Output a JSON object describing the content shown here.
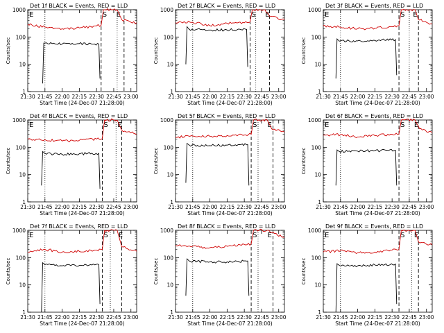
{
  "figure": {
    "xlabel": "Start Time (24-Dec-07 21:28:00)",
    "ylabel": "Counts/sec"
  },
  "chart_data": [
    {
      "type": "line",
      "title": "Det 1f BLACK = Events, RED = LLD",
      "xlabel": "Start Time (24-Dec-07 21:28:00)",
      "ylabel": "Counts/sec",
      "yscale": "log",
      "ylim": [
        1,
        1000
      ],
      "xlim": [
        "21:30",
        "23:05"
      ],
      "x_ticks": [
        "21:30",
        "21:45",
        "22:00",
        "22:15",
        "22:30",
        "22:45",
        "23:00"
      ],
      "y_ticks": [
        "1",
        "10",
        "100",
        "1000"
      ],
      "markers": [
        {
          "label": "E",
          "time": "21:30"
        },
        {
          "label": "S",
          "time": "22:34"
        },
        {
          "label": "E",
          "time": "22:46"
        }
      ],
      "dotted_lines": [
        "21:45",
        "22:48"
      ],
      "dashed_lines": [
        "22:34",
        "22:54"
      ],
      "series": [
        {
          "color": "#d00000",
          "x": [
            "21:30",
            "21:45",
            "22:00",
            "22:15",
            "22:30",
            "22:34",
            "22:36",
            "22:48",
            "22:52",
            "23:05"
          ],
          "y": [
            290,
            230,
            200,
            215,
            255,
            270,
            1000,
            1000,
            430,
            330
          ]
        },
        {
          "color": "#000000",
          "x": [
            "21:43",
            "21:44",
            "21:45",
            "22:00",
            "22:15",
            "22:32",
            "22:33"
          ],
          "y": [
            2,
            60,
            60,
            55,
            57,
            55,
            3
          ]
        }
      ]
    },
    {
      "type": "line",
      "title": "Det 2f BLACK = Events, RED = LLD",
      "xlabel": "Start Time (24-Dec-07 21:28:00)",
      "ylabel": "Counts/sec",
      "yscale": "log",
      "ylim": [
        1,
        1000
      ],
      "xlim": [
        "21:30",
        "23:05"
      ],
      "x_ticks": [
        "21:30",
        "21:45",
        "22:00",
        "22:15",
        "22:30",
        "22:45",
        "23:00"
      ],
      "y_ticks": [
        "1",
        "10",
        "100",
        "1000"
      ],
      "markers": [
        {
          "label": "S",
          "time": "22:35"
        },
        {
          "label": "E",
          "time": "22:47"
        }
      ],
      "dotted_lines": [
        "21:45",
        "22:40"
      ],
      "dashed_lines": [
        "22:35",
        "22:52"
      ],
      "series": [
        {
          "color": "#d00000",
          "x": [
            "21:30",
            "21:45",
            "22:00",
            "22:15",
            "22:30",
            "22:35",
            "22:37",
            "22:48",
            "22:52",
            "23:05"
          ],
          "y": [
            330,
            350,
            260,
            320,
            330,
            350,
            1000,
            1000,
            560,
            430
          ]
        },
        {
          "color": "#000000",
          "x": [
            "21:39",
            "21:40",
            "21:42",
            "22:00",
            "22:15",
            "22:32",
            "22:33"
          ],
          "y": [
            10,
            240,
            190,
            180,
            180,
            190,
            8
          ]
        }
      ]
    },
    {
      "type": "line",
      "title": "Det 3f BLACK = Events, RED = LLD",
      "xlabel": "Start Time (24-Dec-07 21:28:00)",
      "ylabel": "Counts/sec",
      "yscale": "log",
      "ylim": [
        1,
        1000
      ],
      "xlim": [
        "21:30",
        "23:05"
      ],
      "x_ticks": [
        "21:30",
        "21:45",
        "22:00",
        "22:15",
        "22:30",
        "22:45",
        "23:00"
      ],
      "y_ticks": [
        "1",
        "10",
        "100",
        "1000"
      ],
      "markers": [
        {
          "label": "E",
          "time": "21:30"
        },
        {
          "label": "S",
          "time": "22:36"
        },
        {
          "label": "E",
          "time": "22:47"
        }
      ],
      "dotted_lines": [
        "21:45",
        "22:45"
      ],
      "dashed_lines": [
        "22:36",
        "22:53"
      ],
      "series": [
        {
          "color": "#d00000",
          "x": [
            "21:30",
            "21:45",
            "22:00",
            "22:15",
            "22:30",
            "22:36",
            "22:38",
            "22:50",
            "22:53",
            "23:05"
          ],
          "y": [
            260,
            230,
            200,
            210,
            240,
            260,
            1000,
            1000,
            430,
            300
          ]
        },
        {
          "color": "#000000",
          "x": [
            "21:41",
            "21:42",
            "21:44",
            "22:00",
            "22:15",
            "22:33",
            "22:34"
          ],
          "y": [
            3,
            85,
            70,
            72,
            75,
            80,
            4
          ]
        }
      ]
    },
    {
      "type": "line",
      "title": "Det 4f BLACK = Events, RED = LLD",
      "xlabel": "Start Time (24-Dec-07 21:28:00)",
      "ylabel": "Counts/sec",
      "yscale": "log",
      "ylim": [
        1,
        1000
      ],
      "xlim": [
        "21:30",
        "23:05"
      ],
      "x_ticks": [
        "21:30",
        "21:45",
        "22:00",
        "22:15",
        "22:30",
        "22:45",
        "23:00"
      ],
      "y_ticks": [
        "1",
        "10",
        "100",
        "1000"
      ],
      "markers": [
        {
          "label": "E",
          "time": "21:30"
        },
        {
          "label": "S",
          "time": "22:35"
        },
        {
          "label": "E",
          "time": "22:47"
        }
      ],
      "dotted_lines": [
        "21:45",
        "22:47"
      ],
      "dashed_lines": [
        "22:35",
        "22:52"
      ],
      "series": [
        {
          "color": "#d00000",
          "x": [
            "21:30",
            "21:45",
            "22:00",
            "22:15",
            "22:30",
            "22:35",
            "22:37",
            "22:48",
            "22:52",
            "23:05"
          ],
          "y": [
            200,
            190,
            170,
            180,
            200,
            210,
            1000,
            1000,
            420,
            300
          ]
        },
        {
          "color": "#000000",
          "x": [
            "21:42",
            "21:43",
            "21:45",
            "22:00",
            "22:15",
            "22:32",
            "22:33"
          ],
          "y": [
            4,
            70,
            60,
            55,
            58,
            60,
            3
          ]
        }
      ]
    },
    {
      "type": "line",
      "title": "Det 5f BLACK = Events, RED = LLD",
      "xlabel": "Start Time (24-Dec-07 21:28:00)",
      "ylabel": "Counts/sec",
      "yscale": "log",
      "ylim": [
        1,
        1000
      ],
      "xlim": [
        "21:30",
        "23:05"
      ],
      "x_ticks": [
        "21:30",
        "21:45",
        "22:00",
        "22:15",
        "22:30",
        "22:45",
        "23:00"
      ],
      "y_ticks": [
        "1",
        "10",
        "100",
        "1000"
      ],
      "markers": [
        {
          "label": "S",
          "time": "22:36"
        },
        {
          "label": "E",
          "time": "22:49"
        }
      ],
      "dotted_lines": [
        "21:45",
        "22:42"
      ],
      "dashed_lines": [
        "22:36",
        "22:55"
      ],
      "series": [
        {
          "color": "#d00000",
          "x": [
            "21:30",
            "21:45",
            "22:00",
            "22:15",
            "22:30",
            "22:36",
            "22:38",
            "22:50",
            "22:54",
            "23:05"
          ],
          "y": [
            230,
            260,
            250,
            270,
            280,
            300,
            1000,
            1000,
            470,
            360
          ]
        },
        {
          "color": "#000000",
          "x": [
            "21:39",
            "21:40",
            "21:42",
            "22:00",
            "22:15",
            "22:33",
            "22:34"
          ],
          "y": [
            5,
            140,
            120,
            115,
            120,
            125,
            4
          ]
        }
      ]
    },
    {
      "type": "line",
      "title": "Det 6f BLACK = Events, RED = LLD",
      "xlabel": "Start Time (24-Dec-07 21:28:00)",
      "ylabel": "Counts/sec",
      "yscale": "log",
      "ylim": [
        1,
        1000
      ],
      "xlim": [
        "21:30",
        "23:05"
      ],
      "x_ticks": [
        "21:30",
        "21:45",
        "22:00",
        "22:15",
        "22:30",
        "22:45",
        "23:00"
      ],
      "y_ticks": [
        "1",
        "10",
        "100",
        "1000"
      ],
      "markers": [
        {
          "label": "E",
          "time": "21:30"
        },
        {
          "label": "S",
          "time": "22:36"
        },
        {
          "label": "E",
          "time": "22:48"
        }
      ],
      "dotted_lines": [
        "21:45",
        "22:45"
      ],
      "dashed_lines": [
        "22:36",
        "22:53"
      ],
      "series": [
        {
          "color": "#d00000",
          "x": [
            "21:30",
            "21:45",
            "22:00",
            "22:15",
            "22:30",
            "22:36",
            "22:38",
            "22:50",
            "22:54",
            "23:05"
          ],
          "y": [
            280,
            290,
            240,
            270,
            300,
            310,
            1000,
            1000,
            480,
            350
          ]
        },
        {
          "color": "#000000",
          "x": [
            "21:41",
            "21:42",
            "21:44",
            "22:00",
            "22:15",
            "22:33",
            "22:34"
          ],
          "y": [
            4,
            80,
            70,
            72,
            75,
            78,
            4
          ]
        }
      ]
    },
    {
      "type": "line",
      "title": "Det 7f BLACK = Events, RED = LLD",
      "xlabel": "Start Time (24-Dec-07 21:28:00)",
      "ylabel": "Counts/sec",
      "yscale": "log",
      "ylim": [
        1,
        1000
      ],
      "xlim": [
        "21:30",
        "23:05"
      ],
      "x_ticks": [
        "21:30",
        "21:45",
        "22:00",
        "22:15",
        "22:30",
        "22:45",
        "23:00"
      ],
      "y_ticks": [
        "1",
        "10",
        "100",
        "1000"
      ],
      "markers": [
        {
          "label": "E",
          "time": "21:30"
        },
        {
          "label": "S",
          "time": "22:35"
        },
        {
          "label": "E",
          "time": "22:48"
        }
      ],
      "dotted_lines": [
        "21:45",
        "22:42"
      ],
      "dashed_lines": [
        "22:35",
        "22:52"
      ],
      "series": [
        {
          "color": "#d00000",
          "x": [
            "21:30",
            "21:45",
            "22:00",
            "22:15",
            "22:30",
            "22:35",
            "22:37",
            "22:48",
            "22:52",
            "23:05"
          ],
          "y": [
            160,
            200,
            160,
            170,
            190,
            200,
            1000,
            1000,
            250,
            170
          ]
        },
        {
          "color": "#000000",
          "x": [
            "21:42",
            "21:43",
            "21:45",
            "22:00",
            "22:15",
            "22:32",
            "22:33"
          ],
          "y": [
            1,
            65,
            55,
            50,
            52,
            55,
            2
          ]
        }
      ]
    },
    {
      "type": "line",
      "title": "Det 8f BLACK = Events, RED = LLD",
      "xlabel": "Start Time (24-Dec-07 21:28:00)",
      "ylabel": "Counts/sec",
      "yscale": "log",
      "ylim": [
        1,
        1000
      ],
      "xlim": [
        "21:30",
        "23:05"
      ],
      "x_ticks": [
        "21:30",
        "21:45",
        "22:00",
        "22:15",
        "22:30",
        "22:45",
        "23:00"
      ],
      "y_ticks": [
        "1",
        "10",
        "100",
        "1000"
      ],
      "markers": [
        {
          "label": "S",
          "time": "22:36"
        },
        {
          "label": "E",
          "time": "22:49"
        }
      ],
      "dotted_lines": [
        "21:45",
        "22:42"
      ],
      "dashed_lines": [
        "22:36",
        "22:55"
      ],
      "series": [
        {
          "color": "#d00000",
          "x": [
            "21:30",
            "21:45",
            "22:00",
            "22:15",
            "22:30",
            "22:36",
            "22:38",
            "22:50",
            "22:54",
            "23:05"
          ],
          "y": [
            280,
            260,
            230,
            260,
            300,
            320,
            1000,
            1000,
            820,
            560
          ]
        },
        {
          "color": "#000000",
          "x": [
            "21:39",
            "21:40",
            "21:42",
            "22:00",
            "22:15",
            "22:33",
            "22:34"
          ],
          "y": [
            4,
            90,
            75,
            70,
            70,
            75,
            4
          ]
        }
      ]
    },
    {
      "type": "line",
      "title": "Det 9f BLACK = Events, RED = LLD",
      "xlabel": "Start Time (24-Dec-07 21:28:00)",
      "ylabel": "Counts/sec",
      "yscale": "log",
      "ylim": [
        1,
        1000
      ],
      "xlim": [
        "21:30",
        "23:05"
      ],
      "x_ticks": [
        "21:30",
        "21:45",
        "22:00",
        "22:15",
        "22:30",
        "22:45",
        "23:00"
      ],
      "y_ticks": [
        "1",
        "10",
        "100",
        "1000"
      ],
      "markers": [
        {
          "label": "E",
          "time": "21:30"
        },
        {
          "label": "S",
          "time": "22:36"
        },
        {
          "label": "E",
          "time": "22:48"
        }
      ],
      "dotted_lines": [
        "21:45",
        "22:47"
      ],
      "dashed_lines": [
        "22:36",
        "22:53"
      ],
      "series": [
        {
          "color": "#d00000",
          "x": [
            "21:30",
            "21:45",
            "22:00",
            "22:15",
            "22:30",
            "22:36",
            "22:38",
            "22:50",
            "22:53",
            "23:05"
          ],
          "y": [
            160,
            180,
            150,
            160,
            190,
            200,
            1000,
            1000,
            380,
            290
          ]
        },
        {
          "color": "#000000",
          "x": [
            "21:41",
            "21:42",
            "21:44",
            "22:00",
            "22:15",
            "22:33",
            "22:34"
          ],
          "y": [
            1,
            60,
            52,
            50,
            54,
            58,
            2
          ]
        }
      ]
    }
  ]
}
